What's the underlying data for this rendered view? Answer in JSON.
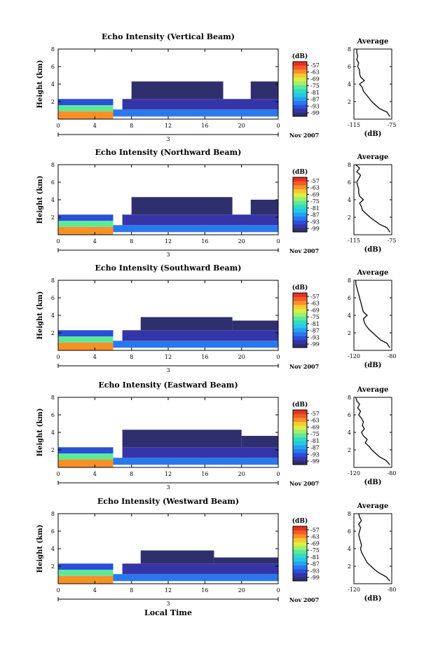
{
  "figure": {
    "xlabel": "Local Time",
    "date_label": "Nov 2007",
    "day_label": "3",
    "colorbar_unit": "(dB)",
    "colorbar_ticks": [
      "-57",
      "-63",
      "-69",
      "-75",
      "-81",
      "-87",
      "-93",
      "-99"
    ]
  },
  "colors": {
    "scale": [
      "#2f2f6e",
      "#3535a8",
      "#2a4fd8",
      "#2a78ee",
      "#25a3ee",
      "#25c8e8",
      "#30dcc0",
      "#5ee89a",
      "#9ef06e",
      "#dcef45",
      "#f8c830",
      "#f89028",
      "#f45a28",
      "#e83020"
    ]
  },
  "chart_data": [
    {
      "type": "heatmap",
      "title": "Echo Intensity (Vertical Beam)",
      "ylabel": "Height (km)",
      "xlim": [
        0,
        24
      ],
      "ylim": [
        0,
        8
      ],
      "xticks": [
        "0",
        "4",
        "8",
        "12",
        "16",
        "20",
        "0"
      ],
      "yticks": [
        "2",
        "4",
        "6",
        "8"
      ],
      "zlim": [
        -99,
        -57
      ],
      "layers": [
        {
          "x0": 0,
          "x1": 6,
          "y0": 0,
          "y1": 0.9,
          "z": -66
        },
        {
          "x0": 0,
          "x1": 6,
          "y0": 0.9,
          "y1": 1.6,
          "z": -78
        },
        {
          "x0": 0,
          "x1": 6,
          "y0": 1.6,
          "y1": 2.3,
          "z": -93
        },
        {
          "x0": 6,
          "x1": 24,
          "y0": 0.3,
          "y1": 1.1,
          "z": -90
        },
        {
          "x0": 7,
          "x1": 24,
          "y0": 1.1,
          "y1": 2.3,
          "z": -96
        },
        {
          "x0": 8,
          "x1": 18,
          "y0": 2.3,
          "y1": 4.3,
          "z": -99
        },
        {
          "x0": 21,
          "x1": 24,
          "y0": 2.3,
          "y1": 4.3,
          "z": -99
        }
      ],
      "profile": {
        "title": "Average",
        "xlabel": "(dB)",
        "xlim": [
          -115,
          -75
        ],
        "xticks": [
          "-115",
          "-75"
        ],
        "yticks": [
          "2",
          "4",
          "6",
          "8"
        ],
        "height": [
          0.3,
          0.8,
          1.2,
          1.6,
          2.0,
          2.4,
          2.8,
          3.2,
          3.6,
          4.0,
          4.4,
          4.8,
          5.2,
          5.6,
          6.0,
          6.4,
          6.8,
          7.2,
          7.6,
          8.0
        ],
        "value": [
          -77,
          -80,
          -88,
          -92,
          -96,
          -99,
          -102,
          -105,
          -106,
          -109,
          -104,
          -108,
          -109,
          -109,
          -111,
          -110,
          -112,
          -111,
          -112,
          -112
        ]
      }
    },
    {
      "type": "heatmap",
      "title": "Echo Intensity (Northward Beam)",
      "ylabel": "Height (km)",
      "xlim": [
        0,
        24
      ],
      "ylim": [
        0,
        8
      ],
      "xticks": [
        "0",
        "4",
        "8",
        "12",
        "16",
        "20",
        "0"
      ],
      "yticks": [
        "2",
        "4",
        "6",
        "8"
      ],
      "zlim": [
        -99,
        -57
      ],
      "layers": [
        {
          "x0": 0,
          "x1": 6,
          "y0": 0,
          "y1": 0.9,
          "z": -66
        },
        {
          "x0": 0,
          "x1": 6,
          "y0": 0.9,
          "y1": 1.6,
          "z": -78
        },
        {
          "x0": 0,
          "x1": 6,
          "y0": 1.6,
          "y1": 2.3,
          "z": -93
        },
        {
          "x0": 6,
          "x1": 24,
          "y0": 0.3,
          "y1": 1.1,
          "z": -90
        },
        {
          "x0": 7,
          "x1": 24,
          "y0": 1.1,
          "y1": 2.3,
          "z": -96
        },
        {
          "x0": 8,
          "x1": 19,
          "y0": 2.3,
          "y1": 4.3,
          "z": -99
        },
        {
          "x0": 21,
          "x1": 24,
          "y0": 2.3,
          "y1": 4.0,
          "z": -99
        }
      ],
      "profile": {
        "title": "Average",
        "xlabel": "(dB)",
        "xlim": [
          -115,
          -75
        ],
        "xticks": [
          "-115",
          "-75"
        ],
        "yticks": [
          "2",
          "4",
          "6",
          "8"
        ],
        "height": [
          0.3,
          0.8,
          1.2,
          1.6,
          2.0,
          2.4,
          2.8,
          3.2,
          3.6,
          4.0,
          4.4,
          4.8,
          5.2,
          5.6,
          6.0,
          6.4,
          6.8,
          7.2,
          7.6,
          8.0
        ],
        "value": [
          -77,
          -80,
          -88,
          -93,
          -98,
          -102,
          -106,
          -107,
          -109,
          -105,
          -109,
          -110,
          -110,
          -111,
          -112,
          -110,
          -108,
          -112,
          -109,
          -113
        ]
      }
    },
    {
      "type": "heatmap",
      "title": "Echo Intensity (Southward Beam)",
      "ylabel": "Height (km)",
      "xlim": [
        0,
        24
      ],
      "ylim": [
        0,
        8
      ],
      "xticks": [
        "0",
        "4",
        "8",
        "12",
        "16",
        "20",
        "0"
      ],
      "yticks": [
        "2",
        "4",
        "6",
        "8"
      ],
      "zlim": [
        -99,
        -57
      ],
      "layers": [
        {
          "x0": 0,
          "x1": 6,
          "y0": 0,
          "y1": 0.9,
          "z": -66
        },
        {
          "x0": 0,
          "x1": 6,
          "y0": 0.9,
          "y1": 1.6,
          "z": -78
        },
        {
          "x0": 0,
          "x1": 6,
          "y0": 1.6,
          "y1": 2.3,
          "z": -93
        },
        {
          "x0": 6,
          "x1": 24,
          "y0": 0.3,
          "y1": 1.1,
          "z": -90
        },
        {
          "x0": 7,
          "x1": 24,
          "y0": 1.1,
          "y1": 2.3,
          "z": -96
        },
        {
          "x0": 9,
          "x1": 19,
          "y0": 2.3,
          "y1": 3.8,
          "z": -99
        },
        {
          "x0": 19,
          "x1": 24,
          "y0": 2.3,
          "y1": 3.4,
          "z": -99
        }
      ],
      "profile": {
        "title": "Average",
        "xlabel": "(dB)",
        "xlim": [
          -120,
          -80
        ],
        "xticks": [
          "-120",
          "-80"
        ],
        "yticks": [
          "2",
          "4",
          "6",
          "8"
        ],
        "height": [
          0.3,
          0.8,
          1.2,
          1.6,
          2.0,
          2.4,
          2.8,
          3.2,
          3.6,
          4.0,
          4.4,
          4.8,
          5.2,
          5.6,
          6.0,
          6.4,
          6.8,
          7.2,
          7.6,
          8.0
        ],
        "value": [
          -82,
          -85,
          -92,
          -96,
          -100,
          -104,
          -107,
          -109,
          -110,
          -106,
          -110,
          -111,
          -112,
          -113,
          -114,
          -115,
          -116,
          -117,
          -118,
          -118
        ]
      }
    },
    {
      "type": "heatmap",
      "title": "Echo Intensity (Eastward Beam)",
      "ylabel": "Height (km)",
      "xlim": [
        0,
        24
      ],
      "ylim": [
        0,
        8
      ],
      "xticks": [
        "0",
        "4",
        "8",
        "12",
        "16",
        "20",
        "0"
      ],
      "yticks": [
        "2",
        "4",
        "6",
        "8"
      ],
      "zlim": [
        -99,
        -57
      ],
      "layers": [
        {
          "x0": 0,
          "x1": 6,
          "y0": 0,
          "y1": 0.9,
          "z": -66
        },
        {
          "x0": 0,
          "x1": 6,
          "y0": 0.9,
          "y1": 1.6,
          "z": -78
        },
        {
          "x0": 0,
          "x1": 6,
          "y0": 1.6,
          "y1": 2.3,
          "z": -93
        },
        {
          "x0": 6,
          "x1": 24,
          "y0": 0.3,
          "y1": 1.1,
          "z": -90
        },
        {
          "x0": 7,
          "x1": 24,
          "y0": 1.1,
          "y1": 2.3,
          "z": -96
        },
        {
          "x0": 7,
          "x1": 20,
          "y0": 2.3,
          "y1": 4.3,
          "z": -99
        },
        {
          "x0": 20,
          "x1": 24,
          "y0": 2.3,
          "y1": 3.6,
          "z": -99
        }
      ],
      "profile": {
        "title": "Average",
        "xlabel": "(dB)",
        "xlim": [
          -120,
          -80
        ],
        "xticks": [
          "-120",
          "-80"
        ],
        "yticks": [
          "2",
          "4",
          "6",
          "8"
        ],
        "height": [
          0.3,
          0.8,
          1.2,
          1.6,
          2.0,
          2.4,
          2.8,
          3.2,
          3.6,
          4.0,
          4.4,
          4.8,
          5.2,
          5.6,
          6.0,
          6.4,
          6.8,
          7.2,
          7.6,
          8.0
        ],
        "value": [
          -82,
          -86,
          -93,
          -97,
          -101,
          -104,
          -108,
          -106,
          -110,
          -112,
          -109,
          -111,
          -110,
          -112,
          -115,
          -113,
          -116,
          -114,
          -117,
          -118
        ]
      }
    },
    {
      "type": "heatmap",
      "title": "Echo Intensity (Westward Beam)",
      "ylabel": "Height (km)",
      "xlim": [
        0,
        24
      ],
      "ylim": [
        0,
        8
      ],
      "xticks": [
        "0",
        "4",
        "8",
        "12",
        "16",
        "20",
        "0"
      ],
      "yticks": [
        "2",
        "4",
        "6",
        "8"
      ],
      "zlim": [
        -99,
        -57
      ],
      "layers": [
        {
          "x0": 0,
          "x1": 6,
          "y0": 0,
          "y1": 0.9,
          "z": -66
        },
        {
          "x0": 0,
          "x1": 6,
          "y0": 0.9,
          "y1": 1.6,
          "z": -78
        },
        {
          "x0": 0,
          "x1": 6,
          "y0": 1.6,
          "y1": 2.3,
          "z": -93
        },
        {
          "x0": 6,
          "x1": 24,
          "y0": 0.3,
          "y1": 1.1,
          "z": -90
        },
        {
          "x0": 7,
          "x1": 24,
          "y0": 1.1,
          "y1": 2.3,
          "z": -96
        },
        {
          "x0": 9,
          "x1": 17,
          "y0": 2.3,
          "y1": 3.8,
          "z": -99
        },
        {
          "x0": 17,
          "x1": 24,
          "y0": 2.3,
          "y1": 3.0,
          "z": -99
        }
      ],
      "profile": {
        "title": "Average",
        "xlabel": "(dB)",
        "xlim": [
          -120,
          -80
        ],
        "xticks": [
          "-120",
          "-80"
        ],
        "yticks": [
          "2",
          "4",
          "6",
          "8"
        ],
        "height": [
          0.3,
          0.8,
          1.2,
          1.6,
          2.0,
          2.4,
          2.8,
          3.2,
          3.6,
          4.0,
          4.4,
          4.8,
          5.2,
          5.6,
          6.0,
          6.4,
          6.8,
          7.2,
          7.6,
          8.0
        ],
        "value": [
          -82,
          -86,
          -93,
          -98,
          -102,
          -106,
          -108,
          -110,
          -112,
          -113,
          -112,
          -113,
          -114,
          -115,
          -114,
          -113,
          -115,
          -112,
          -114,
          -115
        ]
      }
    }
  ]
}
